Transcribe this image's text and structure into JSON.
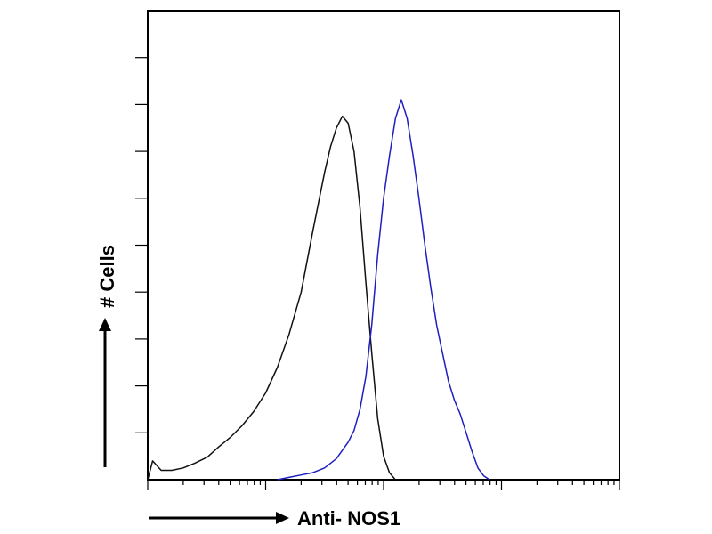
{
  "chart_data": {
    "type": "line",
    "xlabel": "Anti- NOS1",
    "ylabel": "# Cells",
    "x_scale": "log",
    "xlim": [
      1,
      10000
    ],
    "ylim": [
      0,
      100
    ],
    "grid": false,
    "colors": {
      "axes": "#000000",
      "control": "#111111",
      "stained": "#1f1fbf"
    },
    "series": [
      {
        "x": [
          1.0,
          1.1,
          1.3,
          1.6,
          2.0,
          2.5,
          3.2,
          4.0,
          5.0,
          6.3,
          7.9,
          10.0,
          12.6,
          15.8,
          20.0,
          25.1,
          31.6,
          35.5,
          39.8,
          44.7,
          50.1,
          56.2,
          63.1,
          70.8,
          79.4,
          89.1,
          100.0,
          112.2,
          125.9
        ],
        "values": [
          0.0,
          4.0,
          2.0,
          2.0,
          2.5,
          3.5,
          4.8,
          7.0,
          9.0,
          11.5,
          14.5,
          18.5,
          24.0,
          31.0,
          40.0,
          53.0,
          65.5,
          71.0,
          75.0,
          77.5,
          76.0,
          70.0,
          58.0,
          42.0,
          27.0,
          13.0,
          5.0,
          1.5,
          0.0
        ]
      },
      {
        "x": [
          12.6,
          15.8,
          20.0,
          25.1,
          31.6,
          39.8,
          50.1,
          56.2,
          63.1,
          70.8,
          79.4,
          89.1,
          100.0,
          112.2,
          125.9,
          141.3,
          158.5,
          178.0,
          199.5,
          223.9,
          251.2,
          281.8,
          316.2,
          354.8,
          398.1,
          446.7,
          501.2,
          562.3,
          631.0,
          707.9,
          794.3
        ],
        "values": [
          0.0,
          0.5,
          1.0,
          1.5,
          2.5,
          4.5,
          8.0,
          10.5,
          15.0,
          22.0,
          33.0,
          48.0,
          60.0,
          69.0,
          77.0,
          81.0,
          77.0,
          69.0,
          60.0,
          50.0,
          41.0,
          33.0,
          27.0,
          21.0,
          17.0,
          14.0,
          10.0,
          6.0,
          2.5,
          0.8,
          0.0
        ]
      }
    ]
  }
}
